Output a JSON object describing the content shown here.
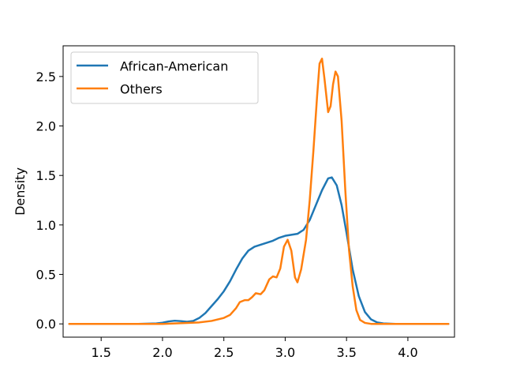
{
  "chart_data": {
    "type": "line",
    "title": "",
    "xlabel": "",
    "ylabel": "Density",
    "xlim": [
      1.19,
      4.38
    ],
    "ylim": [
      -0.134,
      2.81
    ],
    "x_ticks": [
      "1.5",
      "2.0",
      "2.5",
      "3.0",
      "3.5",
      "4.0"
    ],
    "y_ticks": [
      "0.0",
      "0.5",
      "1.0",
      "1.5",
      "2.0",
      "2.5"
    ],
    "grid": false,
    "legend_position": "top-left",
    "series": [
      {
        "name": "African-American",
        "color": "#1f77b4",
        "points": [
          [
            1.24,
            0.0
          ],
          [
            1.5,
            0.0
          ],
          [
            1.8,
            0.0
          ],
          [
            1.95,
            0.005
          ],
          [
            2.0,
            0.012
          ],
          [
            2.05,
            0.025
          ],
          [
            2.1,
            0.032
          ],
          [
            2.15,
            0.028
          ],
          [
            2.2,
            0.022
          ],
          [
            2.25,
            0.03
          ],
          [
            2.3,
            0.06
          ],
          [
            2.35,
            0.11
          ],
          [
            2.4,
            0.18
          ],
          [
            2.45,
            0.25
          ],
          [
            2.5,
            0.33
          ],
          [
            2.55,
            0.43
          ],
          [
            2.6,
            0.55
          ],
          [
            2.65,
            0.66
          ],
          [
            2.7,
            0.74
          ],
          [
            2.75,
            0.78
          ],
          [
            2.8,
            0.8
          ],
          [
            2.85,
            0.82
          ],
          [
            2.9,
            0.84
          ],
          [
            2.95,
            0.87
          ],
          [
            3.0,
            0.89
          ],
          [
            3.05,
            0.9
          ],
          [
            3.1,
            0.91
          ],
          [
            3.15,
            0.95
          ],
          [
            3.2,
            1.05
          ],
          [
            3.25,
            1.2
          ],
          [
            3.3,
            1.35
          ],
          [
            3.35,
            1.47
          ],
          [
            3.38,
            1.48
          ],
          [
            3.42,
            1.4
          ],
          [
            3.46,
            1.2
          ],
          [
            3.5,
            0.92
          ],
          [
            3.55,
            0.55
          ],
          [
            3.6,
            0.28
          ],
          [
            3.65,
            0.12
          ],
          [
            3.7,
            0.045
          ],
          [
            3.75,
            0.015
          ],
          [
            3.8,
            0.005
          ],
          [
            3.9,
            0.0
          ],
          [
            4.1,
            0.0
          ],
          [
            4.33,
            0.0
          ]
        ]
      },
      {
        "name": "Others",
        "color": "#ff7f0e",
        "points": [
          [
            1.24,
            0.0
          ],
          [
            1.5,
            0.0
          ],
          [
            1.8,
            0.0
          ],
          [
            2.0,
            0.0
          ],
          [
            2.1,
            0.005
          ],
          [
            2.2,
            0.01
          ],
          [
            2.3,
            0.015
          ],
          [
            2.4,
            0.03
          ],
          [
            2.5,
            0.06
          ],
          [
            2.55,
            0.09
          ],
          [
            2.6,
            0.16
          ],
          [
            2.63,
            0.22
          ],
          [
            2.67,
            0.24
          ],
          [
            2.7,
            0.24
          ],
          [
            2.73,
            0.27
          ],
          [
            2.76,
            0.31
          ],
          [
            2.8,
            0.3
          ],
          [
            2.83,
            0.34
          ],
          [
            2.87,
            0.45
          ],
          [
            2.9,
            0.48
          ],
          [
            2.93,
            0.47
          ],
          [
            2.96,
            0.56
          ],
          [
            2.99,
            0.78
          ],
          [
            3.02,
            0.85
          ],
          [
            3.05,
            0.74
          ],
          [
            3.08,
            0.47
          ],
          [
            3.1,
            0.42
          ],
          [
            3.13,
            0.55
          ],
          [
            3.17,
            0.85
          ],
          [
            3.2,
            1.25
          ],
          [
            3.23,
            1.75
          ],
          [
            3.26,
            2.3
          ],
          [
            3.28,
            2.63
          ],
          [
            3.3,
            2.68
          ],
          [
            3.32,
            2.48
          ],
          [
            3.35,
            2.14
          ],
          [
            3.37,
            2.2
          ],
          [
            3.39,
            2.42
          ],
          [
            3.41,
            2.55
          ],
          [
            3.43,
            2.5
          ],
          [
            3.46,
            2.05
          ],
          [
            3.49,
            1.35
          ],
          [
            3.52,
            0.75
          ],
          [
            3.55,
            0.38
          ],
          [
            3.58,
            0.14
          ],
          [
            3.61,
            0.04
          ],
          [
            3.65,
            0.01
          ],
          [
            3.7,
            0.0
          ],
          [
            4.0,
            0.0
          ],
          [
            4.33,
            0.0
          ]
        ]
      }
    ]
  }
}
